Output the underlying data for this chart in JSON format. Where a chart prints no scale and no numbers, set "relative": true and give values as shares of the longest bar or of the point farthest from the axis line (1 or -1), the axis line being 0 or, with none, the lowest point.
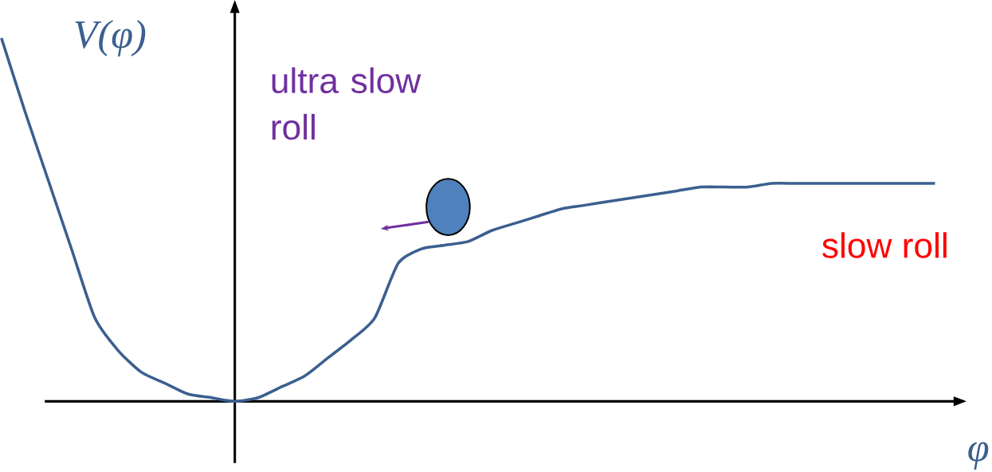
{
  "chart_data": {
    "type": "line",
    "relative": true,
    "categories": [
      null,
      null,
      null,
      null,
      null,
      null,
      null,
      null,
      null,
      null,
      null,
      null,
      null,
      null,
      null,
      null,
      null,
      null,
      null,
      null,
      null,
      null,
      null,
      null,
      null,
      null,
      null,
      null,
      null,
      null,
      null,
      null,
      null,
      null,
      null,
      null,
      null,
      null,
      null,
      null,
      null
    ],
    "values": [
      1.0,
      0.8,
      0.61,
      0.42,
      0.23,
      0.14,
      0.08,
      0.05,
      0.02,
      0.01,
      0.0,
      0.01,
      0.04,
      0.07,
      0.12,
      0.17,
      0.23,
      0.38,
      0.42,
      0.43,
      0.44,
      0.47,
      0.49,
      0.51,
      0.53,
      0.54,
      0.55,
      0.56,
      0.57,
      0.58,
      0.59,
      0.59,
      0.59,
      0.6,
      0.6,
      0.6,
      0.6,
      0.6,
      0.6,
      0.6,
      0.6
    ],
    "color": "#3b5f8f",
    "ylabel": "V(φ)",
    "xlabel": "φ",
    "annotations": [
      "ultra slow roll",
      "slow roll"
    ]
  }
}
